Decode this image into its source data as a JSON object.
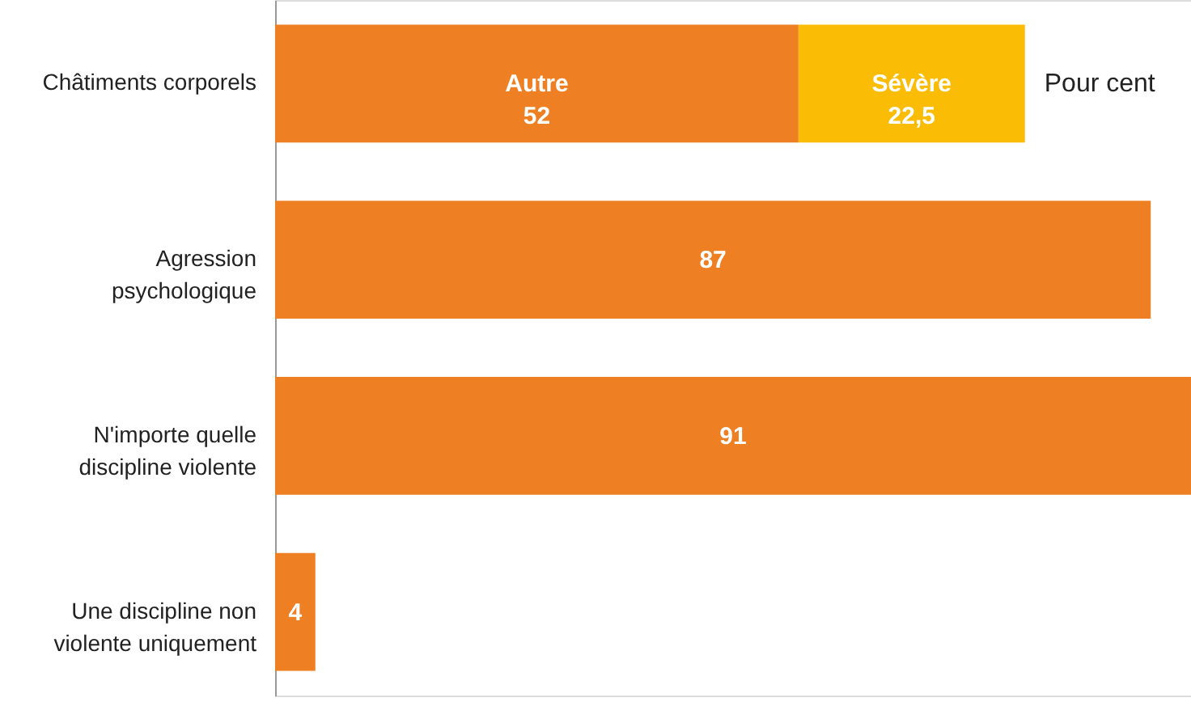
{
  "chart_data": {
    "type": "bar",
    "orientation": "horizontal",
    "stacked": true,
    "categories": [
      "Châtiments corporels",
      "Agression psychologique",
      "N'importe quelle discipline violente",
      "Une discipline non violente uniquement"
    ],
    "series": [
      {
        "name": "Autre",
        "color": "#ee7f22",
        "values": [
          52,
          87,
          91,
          4
        ],
        "value_labels": [
          "52",
          "87",
          "91",
          "4"
        ]
      },
      {
        "name": "Sévère",
        "color": "#fbbc06",
        "values": [
          22.5,
          null,
          null,
          null
        ],
        "value_labels": [
          "22,5",
          null,
          null,
          null
        ]
      }
    ],
    "xlim": [
      0,
      91
    ],
    "tick_labels": "y",
    "annotations": [
      "Pour cent"
    ]
  }
}
